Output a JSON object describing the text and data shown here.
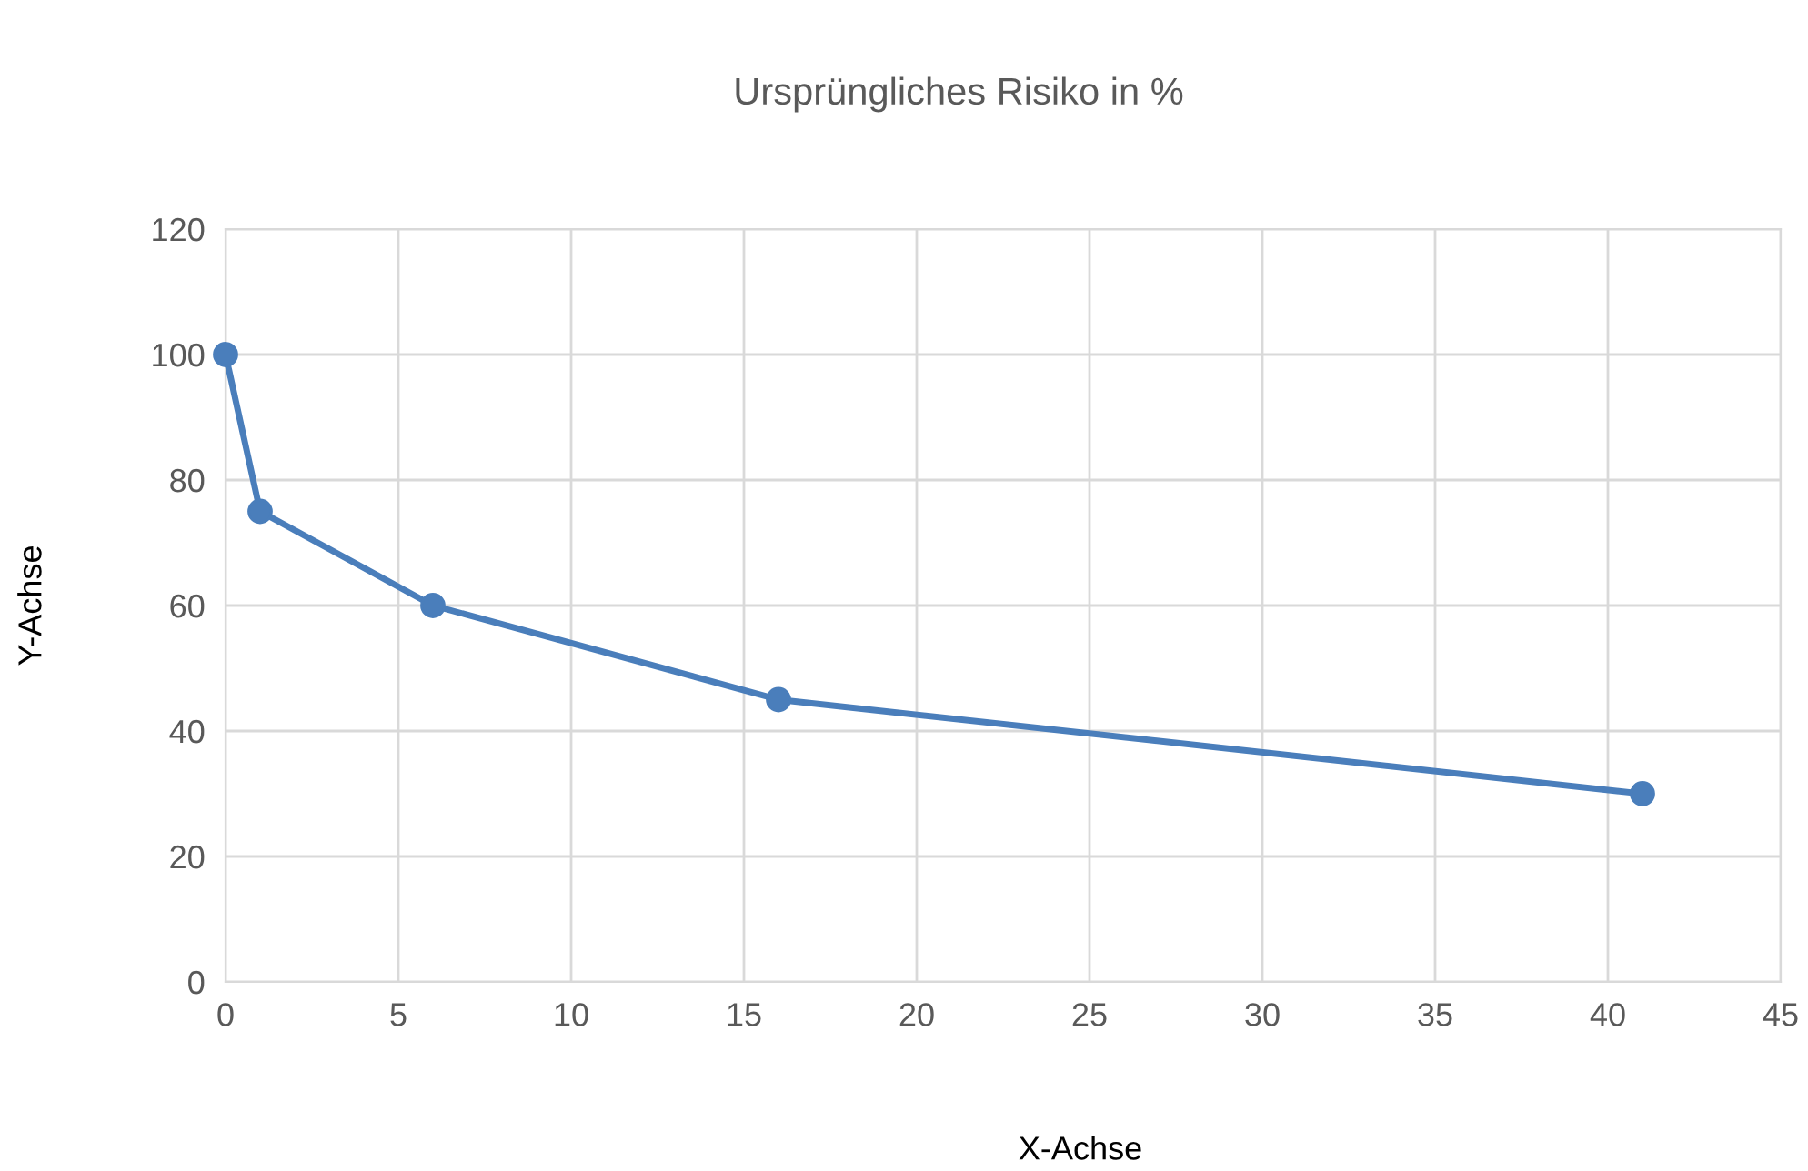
{
  "chart_data": {
    "type": "line",
    "title": "Ursprüngliches Risiko in %",
    "xlabel": "X-Achse",
    "ylabel": "Y-Achse",
    "series": [
      {
        "color": "#4a7ebb",
        "x": [
          0,
          1,
          6,
          16,
          41
        ],
        "values": [
          100,
          75,
          60,
          45,
          30
        ]
      }
    ],
    "xlim": [
      0,
      45
    ],
    "xticks": [
      0,
      5,
      10,
      15,
      20,
      25,
      30,
      35,
      40,
      45
    ],
    "ylim": [
      0,
      120
    ],
    "yticks": [
      0,
      20,
      40,
      60,
      80,
      100,
      120
    ],
    "grid": true,
    "marker": "circle",
    "line_style": "solid"
  }
}
